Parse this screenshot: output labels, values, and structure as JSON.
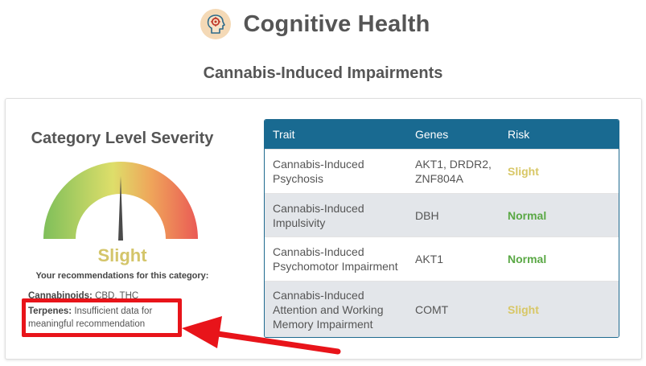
{
  "header": {
    "title": "Cognitive Health",
    "icon": "head-gear-icon"
  },
  "subtitle": "Cannabis-Induced Impairments",
  "severity": {
    "heading": "Category Level Severity",
    "value": "Slight",
    "value_color": "#d4c56a",
    "gauge_needle_fraction": 0.5
  },
  "recommendations": {
    "heading": "Your recommendations for this category:",
    "items": [
      {
        "label": "Cannabinoids:",
        "text": "CBD, THC"
      },
      {
        "label": "Terpenes:",
        "text": "Insufficient data for meaningful recommendation"
      }
    ]
  },
  "table": {
    "headers": [
      "Trait",
      "Genes",
      "Risk"
    ],
    "header_color": "#196a91",
    "rows": [
      {
        "trait": "Cannabis-Induced Psychosis",
        "genes": "AKT1, DRDR2, ZNF804A",
        "risk": "Slight"
      },
      {
        "trait": "Cannabis-Induced Impulsivity",
        "genes": "DBH",
        "risk": "Normal"
      },
      {
        "trait": "Cannabis-Induced Psychomotor Impairment",
        "genes": "AKT1",
        "risk": "Normal"
      },
      {
        "trait": "Cannabis-Induced Attention and Working Memory Impairment",
        "genes": "COMT",
        "risk": "Slight"
      }
    ]
  },
  "annotation": {
    "color": "#e8141a"
  }
}
